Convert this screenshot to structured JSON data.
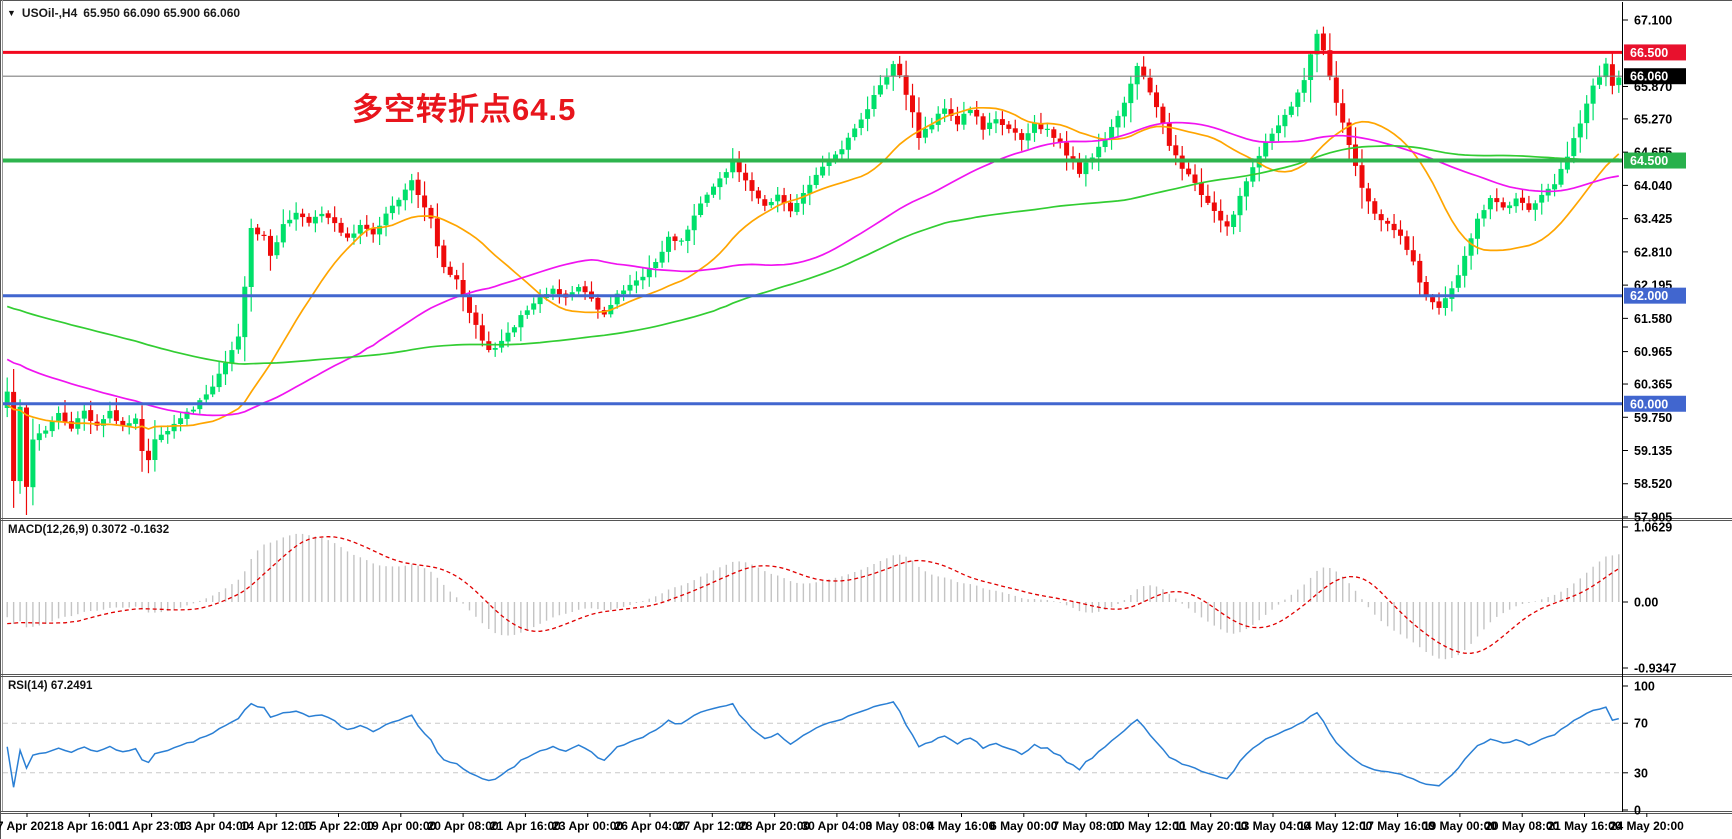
{
  "header": {
    "symbol": "USOil-,H4",
    "quote_line": "65.950 66.090 65.900 66.060",
    "dropdown_icon": "▼"
  },
  "chart_data": {
    "type": "candlestick",
    "title": "USOil-,H4",
    "quote": {
      "open": "65.950",
      "high": "66.090",
      "low": "65.900",
      "close": "66.060"
    },
    "annotation": {
      "text": "多空转折点64.5",
      "color": "#e8151c"
    },
    "price_axis": {
      "labels": [
        "67.100",
        "65.870",
        "65.270",
        "64.655",
        "64.040",
        "63.425",
        "62.810",
        "62.195",
        "61.580",
        "60.965",
        "60.365",
        "59.750",
        "59.135",
        "58.520",
        "57.905"
      ],
      "values": [
        67.1,
        65.87,
        65.27,
        64.655,
        64.04,
        63.425,
        62.81,
        62.195,
        61.58,
        60.965,
        60.365,
        59.75,
        59.135,
        58.52,
        57.905
      ]
    },
    "badges": [
      {
        "label": "66.500",
        "price": 66.5,
        "bg": "#e8112d",
        "fg": "#ffffff"
      },
      {
        "label": "66.060",
        "price": 66.06,
        "bg": "#000000",
        "fg": "#ffffff"
      },
      {
        "label": "64.500",
        "price": 64.5,
        "bg": "#28b14c",
        "fg": "#ffffff"
      },
      {
        "label": "62.000",
        "price": 62.0,
        "bg": "#4166cf",
        "fg": "#ffffff"
      },
      {
        "label": "60.000",
        "price": 60.0,
        "bg": "#4166cf",
        "fg": "#ffffff"
      }
    ],
    "hlines": [
      {
        "price": 66.5,
        "color": "#f2081e",
        "width": 3
      },
      {
        "price": 64.5,
        "color": "#2eb44e",
        "width": 4
      },
      {
        "price": 62.0,
        "color": "#4166cf",
        "width": 3
      },
      {
        "price": 60.0,
        "color": "#4166cf",
        "width": 3
      }
    ],
    "current_price": {
      "price": 66.06,
      "line_color": "#808080"
    },
    "time_axis": [
      "7 Apr 2021",
      "8 Apr 16:00",
      "11 Apr 23:00",
      "13 Apr 04:00",
      "14 Apr 12:00",
      "15 Apr 22:00",
      "19 Apr 00:00",
      "20 Apr 08:00",
      "21 Apr 16:00",
      "23 Apr 00:00",
      "26 Apr 04:00",
      "27 Apr 12:00",
      "28 Apr 20:00",
      "30 Apr 04:00",
      "3 May 08:00",
      "4 May 16:00",
      "6 May 00:00",
      "7 May 08:00",
      "10 May 12:00",
      "11 May 20:00",
      "13 May 04:00",
      "14 May 12:00",
      "17 May 16:00",
      "19 May 00:00",
      "20 May 08:00",
      "21 May 16:00",
      "24 May 20:00"
    ],
    "candles": {
      "count": 252,
      "up_color": "#00e06a",
      "down_color": "#ee0a0a",
      "close_anchors": [
        [
          0,
          60.2
        ],
        [
          1,
          58.6
        ],
        [
          2,
          59.9
        ],
        [
          3,
          58.45
        ],
        [
          4,
          59.3
        ],
        [
          6,
          59.55
        ],
        [
          8,
          59.8
        ],
        [
          10,
          59.55
        ],
        [
          12,
          59.85
        ],
        [
          14,
          59.6
        ],
        [
          16,
          59.9
        ],
        [
          18,
          59.55
        ],
        [
          20,
          59.75
        ],
        [
          21,
          59.1
        ],
        [
          22,
          58.95
        ],
        [
          23,
          59.35
        ],
        [
          25,
          59.5
        ],
        [
          27,
          59.75
        ],
        [
          29,
          59.9
        ],
        [
          31,
          60.15
        ],
        [
          33,
          60.55
        ],
        [
          35,
          60.95
        ],
        [
          36,
          61.25
        ],
        [
          37,
          62.2
        ],
        [
          38,
          63.25
        ],
        [
          40,
          63.1
        ],
        [
          41,
          62.7
        ],
        [
          43,
          63.3
        ],
        [
          45,
          63.5
        ],
        [
          47,
          63.35
        ],
        [
          49,
          63.55
        ],
        [
          51,
          63.3
        ],
        [
          53,
          63.05
        ],
        [
          55,
          63.3
        ],
        [
          57,
          63.15
        ],
        [
          59,
          63.5
        ],
        [
          61,
          63.75
        ],
        [
          63,
          64.1
        ],
        [
          64,
          63.9
        ],
        [
          66,
          63.4
        ],
        [
          68,
          62.5
        ],
        [
          70,
          62.3
        ],
        [
          72,
          61.7
        ],
        [
          74,
          61.15
        ],
        [
          75,
          60.95
        ],
        [
          77,
          61.2
        ],
        [
          79,
          61.45
        ],
        [
          81,
          61.75
        ],
        [
          83,
          62.0
        ],
        [
          85,
          62.1
        ],
        [
          87,
          62.0
        ],
        [
          89,
          62.15
        ],
        [
          91,
          61.9
        ],
        [
          93,
          61.65
        ],
        [
          95,
          62.05
        ],
        [
          97,
          62.2
        ],
        [
          99,
          62.35
        ],
        [
          101,
          62.65
        ],
        [
          103,
          63.05
        ],
        [
          105,
          63.0
        ],
        [
          107,
          63.5
        ],
        [
          109,
          63.9
        ],
        [
          111,
          64.15
        ],
        [
          113,
          64.5
        ],
        [
          114,
          64.3
        ],
        [
          116,
          63.95
        ],
        [
          118,
          63.7
        ],
        [
          120,
          63.85
        ],
        [
          122,
          63.6
        ],
        [
          124,
          63.9
        ],
        [
          126,
          64.25
        ],
        [
          128,
          64.5
        ],
        [
          130,
          64.75
        ],
        [
          132,
          65.1
        ],
        [
          134,
          65.45
        ],
        [
          136,
          65.9
        ],
        [
          138,
          66.25
        ],
        [
          139,
          66.1
        ],
        [
          141,
          65.4
        ],
        [
          142,
          64.95
        ],
        [
          144,
          65.2
        ],
        [
          146,
          65.45
        ],
        [
          148,
          65.2
        ],
        [
          150,
          65.45
        ],
        [
          152,
          65.1
        ],
        [
          154,
          65.3
        ],
        [
          156,
          65.1
        ],
        [
          158,
          64.9
        ],
        [
          160,
          65.2
        ],
        [
          162,
          65.05
        ],
        [
          164,
          64.8
        ],
        [
          166,
          64.45
        ],
        [
          167,
          64.25
        ],
        [
          169,
          64.6
        ],
        [
          171,
          64.9
        ],
        [
          173,
          65.3
        ],
        [
          175,
          65.9
        ],
        [
          176,
          66.25
        ],
        [
          177,
          66.05
        ],
        [
          179,
          65.5
        ],
        [
          181,
          64.8
        ],
        [
          183,
          64.35
        ],
        [
          185,
          64.1
        ],
        [
          187,
          63.7
        ],
        [
          189,
          63.35
        ],
        [
          190,
          63.25
        ],
        [
          192,
          63.8
        ],
        [
          194,
          64.35
        ],
        [
          196,
          64.85
        ],
        [
          198,
          65.15
        ],
        [
          200,
          65.5
        ],
        [
          202,
          66.0
        ],
        [
          203,
          66.45
        ],
        [
          204,
          66.85
        ],
        [
          205,
          66.5
        ],
        [
          207,
          65.6
        ],
        [
          209,
          64.75
        ],
        [
          211,
          64.0
        ],
        [
          213,
          63.5
        ],
        [
          215,
          63.3
        ],
        [
          217,
          63.1
        ],
        [
          219,
          62.6
        ],
        [
          221,
          61.95
        ],
        [
          223,
          61.75
        ],
        [
          225,
          62.1
        ],
        [
          227,
          62.7
        ],
        [
          229,
          63.4
        ],
        [
          231,
          63.85
        ],
        [
          233,
          63.6
        ],
        [
          235,
          63.8
        ],
        [
          237,
          63.55
        ],
        [
          239,
          63.9
        ],
        [
          241,
          64.1
        ],
        [
          243,
          64.6
        ],
        [
          245,
          65.2
        ],
        [
          247,
          65.85
        ],
        [
          249,
          66.25
        ],
        [
          250,
          65.9
        ],
        [
          251,
          66.06
        ]
      ],
      "prehistory_anchors": [
        [
          -120,
          63.35
        ],
        [
          -100,
          63.1
        ],
        [
          -80,
          62.85
        ],
        [
          -60,
          62.3
        ],
        [
          -40,
          61.5
        ],
        [
          -25,
          60.7
        ],
        [
          -15,
          60.1
        ],
        [
          -8,
          59.8
        ],
        [
          -1,
          59.9
        ]
      ]
    },
    "moving_averages": [
      {
        "period": 20,
        "color": "#ffa500"
      },
      {
        "period": 55,
        "color": "#f014f0"
      },
      {
        "period": 110,
        "color": "#32cd32"
      }
    ],
    "macd": {
      "label": "MACD(12,26,9) 0.3072 -0.1632",
      "fast": 12,
      "slow": 26,
      "signal": 9,
      "value": 0.3072,
      "signal_value": -0.1632,
      "axis_labels": [
        "1.0629",
        "0.00",
        "-0.9347"
      ],
      "axis_values": [
        1.0629,
        0.0,
        -0.9347
      ],
      "hist_color": "#c4c4c4",
      "signal_color": "#e00000"
    },
    "rsi": {
      "label": "RSI(14) 67.2491",
      "period": 14,
      "value": 67.2491,
      "axis_labels": [
        "100",
        "70",
        "30",
        "0"
      ],
      "axis_values": [
        100,
        70,
        30,
        0
      ],
      "level_lines": [
        70,
        30
      ],
      "line_color": "#2a7fd4",
      "level_color": "#c8c8c8"
    }
  }
}
